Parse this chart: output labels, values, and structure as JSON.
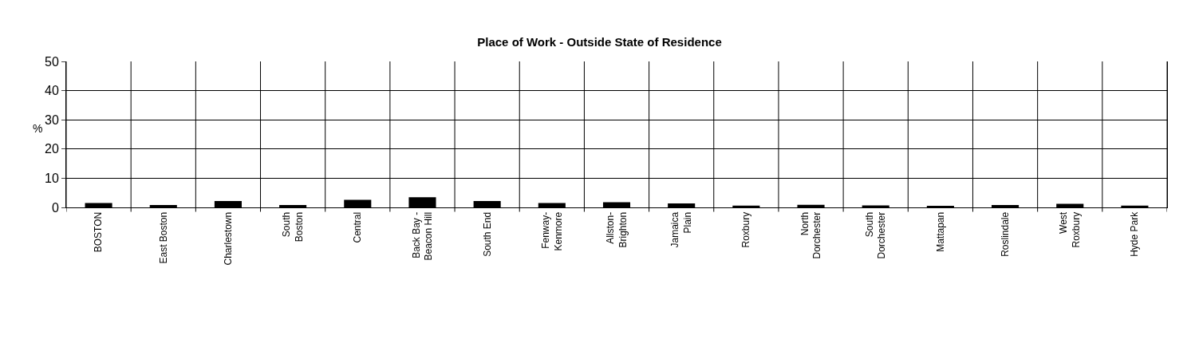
{
  "chart_data": {
    "type": "bar",
    "title": "Place of Work - Outside State of Residence",
    "ylabel": "%",
    "categories": [
      "BOSTON",
      "East Boston",
      "Charlestown",
      "South\nBoston",
      "Central",
      "Back Bay -\nBeacon Hill",
      "South End",
      "Fenway-\nKenmore",
      "Allston-\nBrighton",
      "Jamaica\nPlain",
      "Roxbury",
      "North\nDorchester",
      "South\nDorchester",
      "Mattapan",
      "Roslindale",
      "West\nRoxbury",
      "Hyde Park"
    ],
    "values": [
      1.5,
      0.8,
      2.2,
      0.8,
      2.6,
      3.5,
      2.2,
      1.5,
      1.8,
      1.4,
      0.6,
      0.9,
      0.7,
      0.5,
      0.8,
      1.2,
      0.6
    ],
    "color": "#000000",
    "ylim": [
      0,
      50
    ],
    "yticks": [
      0,
      10,
      20,
      30,
      40,
      50
    ],
    "grid": true
  }
}
